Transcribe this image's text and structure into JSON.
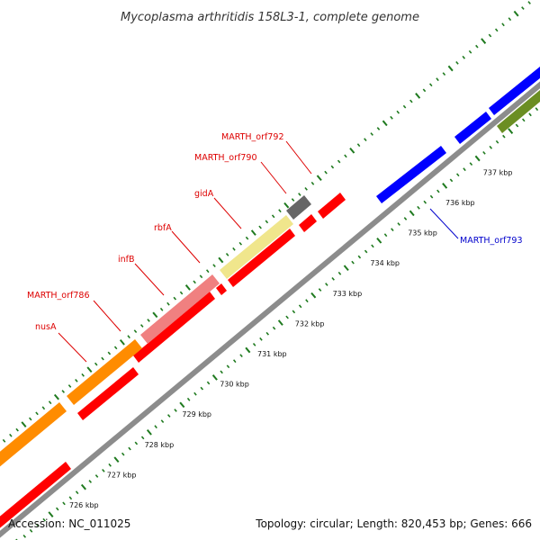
{
  "title": "Mycoplasma arthritidis 158L3-1, complete genome",
  "footer": {
    "accession": "Accession: NC_011025",
    "summary": "Topology: circular; Length: 820,453 bp; Genes: 666"
  },
  "colors": {
    "backbone": "#8c8c8c",
    "tick": "#1f7a1f",
    "red": "#ff0000",
    "orange": "#ff8c00",
    "pink": "#f08080",
    "khaki": "#f0e68c",
    "gray": "#666666",
    "blue": "#0000ff",
    "olive": "#6b8e23",
    "label_red": "#dd0000",
    "label_blue": "#0000cc"
  },
  "ticks": [
    {
      "kbp": 726,
      "label": "726 kbp"
    },
    {
      "kbp": 727,
      "label": "727 kbp"
    },
    {
      "kbp": 728,
      "label": "728 kbp"
    },
    {
      "kbp": 729,
      "label": "729 kbp"
    },
    {
      "kbp": 730,
      "label": "730 kbp"
    },
    {
      "kbp": 731,
      "label": "731 kbp"
    },
    {
      "kbp": 732,
      "label": "732 kbp"
    },
    {
      "kbp": 733,
      "label": "733 kbp"
    },
    {
      "kbp": 734,
      "label": "734 kbp"
    },
    {
      "kbp": 735,
      "label": "735 kbp"
    },
    {
      "kbp": 736,
      "label": "736 kbp"
    },
    {
      "kbp": 737,
      "label": "737 kbp"
    }
  ],
  "gene_labels": [
    {
      "name": "nusA",
      "color": "label_red"
    },
    {
      "name": "MARTH_orf786",
      "color": "label_red"
    },
    {
      "name": "infB",
      "color": "label_red"
    },
    {
      "name": "rbfA",
      "color": "label_red"
    },
    {
      "name": "gidA",
      "color": "label_red"
    },
    {
      "name": "MARTH_orf790",
      "color": "label_red"
    },
    {
      "name": "MARTH_orf792",
      "color": "label_red"
    },
    {
      "name": "MARTH_orf793",
      "color": "label_blue"
    }
  ]
}
